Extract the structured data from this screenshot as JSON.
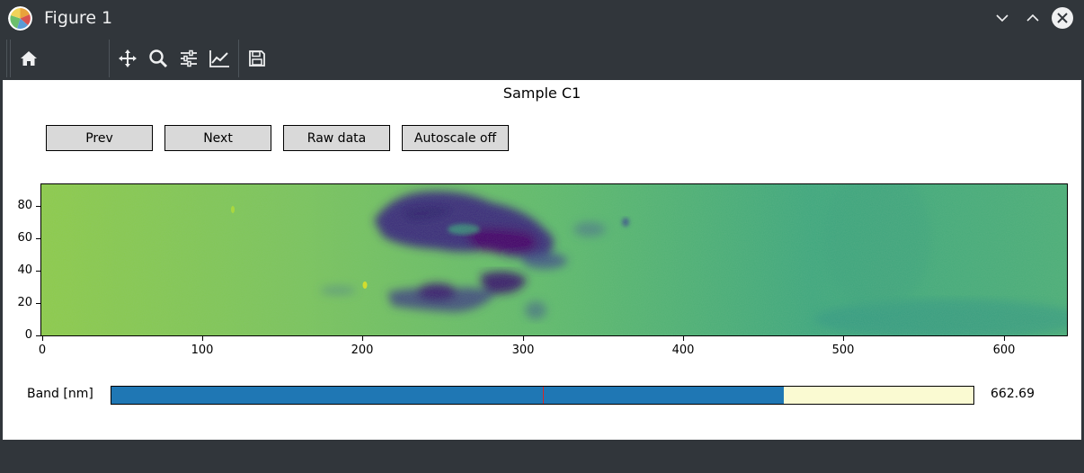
{
  "window": {
    "title": "Figure 1"
  },
  "toolbar": {
    "buttons": [
      {
        "name": "home",
        "icon": "home-icon"
      },
      {
        "name": "pan",
        "icon": "move-icon"
      },
      {
        "name": "zoom",
        "icon": "zoom-icon"
      },
      {
        "name": "configure-subplots",
        "icon": "sliders-icon"
      },
      {
        "name": "edit-axis",
        "icon": "line-chart-icon"
      },
      {
        "name": "save",
        "icon": "save-icon"
      }
    ]
  },
  "figure": {
    "title": "Sample C1",
    "buttons": {
      "prev": "Prev",
      "next": "Next",
      "raw": "Raw data",
      "autoscale": "Autoscale off"
    },
    "colormap": "viridis"
  },
  "chart_data": {
    "type": "heatmap",
    "title": "Sample C1",
    "xlim": [
      0,
      640
    ],
    "ylim": [
      0,
      95
    ],
    "xticks": [
      0,
      100,
      200,
      300,
      400,
      500,
      600
    ],
    "yticks": [
      0,
      20,
      40,
      60,
      80
    ],
    "grid": false,
    "colormap": "viridis",
    "features": [
      {
        "label": "dark region",
        "x": [
          205,
          315
        ],
        "y": [
          50,
          92
        ]
      },
      {
        "label": "dark region",
        "x": [
          205,
          300
        ],
        "y": [
          15,
          38
        ]
      }
    ]
  },
  "slider": {
    "label": "Band [nm]",
    "value": "662.69",
    "fill_fraction": 0.78,
    "valinit_fraction": 0.5,
    "colors": {
      "fill": "#1f77b4",
      "track": "#fafad2",
      "valinit": "#d62728"
    }
  }
}
